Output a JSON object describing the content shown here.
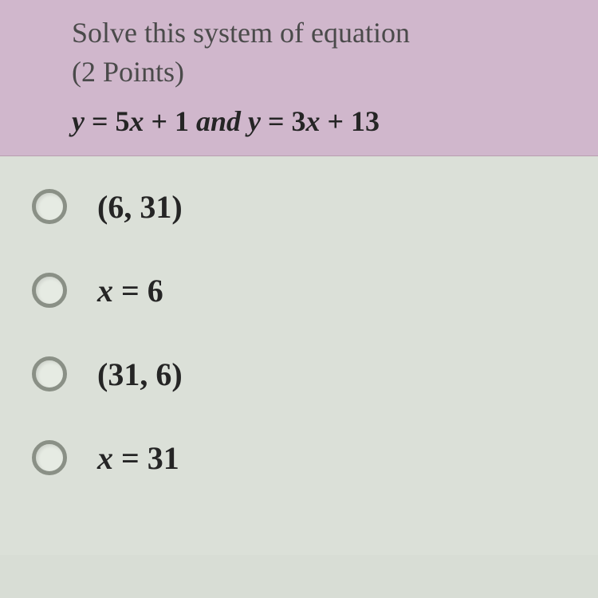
{
  "header": {
    "prompt": "Solve this system of equation",
    "points": "(2 Points)",
    "equation_part1": "y",
    "equation_part2": " = 5",
    "equation_part3": "x",
    "equation_part4": " + 1 ",
    "equation_and": "and",
    "equation_part5": " y",
    "equation_part6": " = 3",
    "equation_part7": "x",
    "equation_part8": " + 13"
  },
  "options": {
    "a": {
      "open": "(6, 31)"
    },
    "b": {
      "var": "x",
      "rest": " = 6"
    },
    "c": {
      "open": "(31, 6)"
    },
    "d": {
      "var": "x",
      "rest": " = 31"
    }
  },
  "styling": {
    "header_bg": "#d0b7cc",
    "body_bg": "#dbe0d8",
    "text_color": "#252525",
    "prompt_color": "#4a4a4a",
    "radio_border": "#8a9086",
    "prompt_fontsize": 36,
    "option_fontsize": 40
  }
}
